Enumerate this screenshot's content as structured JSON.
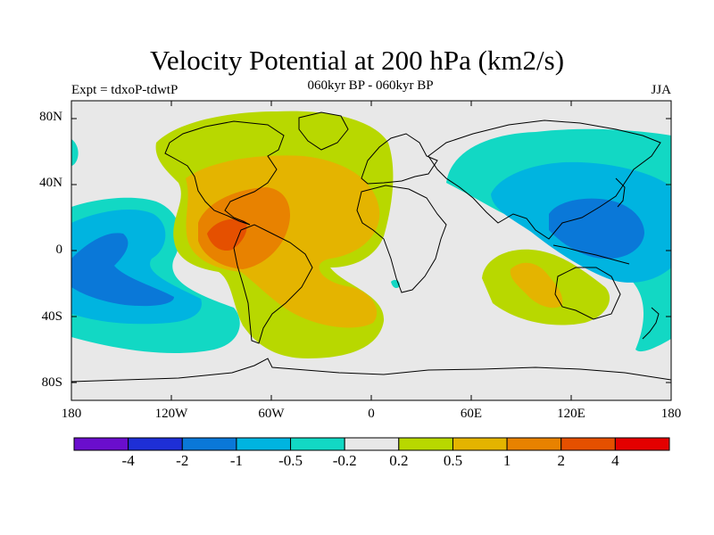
{
  "title": "Velocity Potential at 200 hPa (km2/s)",
  "subtitle": "060kyr BP - 060kyr BP",
  "left_label": "Expt = tdxoP-tdwtP",
  "right_label": "JJA",
  "lat_ticks": [
    {
      "value": 80,
      "label": "80N"
    },
    {
      "value": 40,
      "label": "40N"
    },
    {
      "value": 0,
      "label": "0"
    },
    {
      "value": -40,
      "label": "40S"
    },
    {
      "value": -80,
      "label": "80S"
    }
  ],
  "lon_ticks": [
    {
      "value": -180,
      "label": "180"
    },
    {
      "value": -120,
      "label": "120W"
    },
    {
      "value": -60,
      "label": "60W"
    },
    {
      "value": 0,
      "label": "0"
    },
    {
      "value": 60,
      "label": "60E"
    },
    {
      "value": 120,
      "label": "120E"
    },
    {
      "value": 180,
      "label": "180"
    }
  ],
  "colorbar": {
    "colors": [
      "#6a0ecd",
      "#1e2fd6",
      "#0a78d8",
      "#00b4e0",
      "#12d8c4",
      "#e8e8e8",
      "#b8d800",
      "#e4b400",
      "#e88200",
      "#e55000",
      "#e40000"
    ],
    "labels": [
      "-4",
      "-2",
      "-1",
      "-0.5",
      "-0.2",
      "0.2",
      "0.5",
      "1",
      "2",
      "4"
    ]
  },
  "colors": {
    "land_background": "#e8e8e8",
    "coastline": "#000000"
  }
}
